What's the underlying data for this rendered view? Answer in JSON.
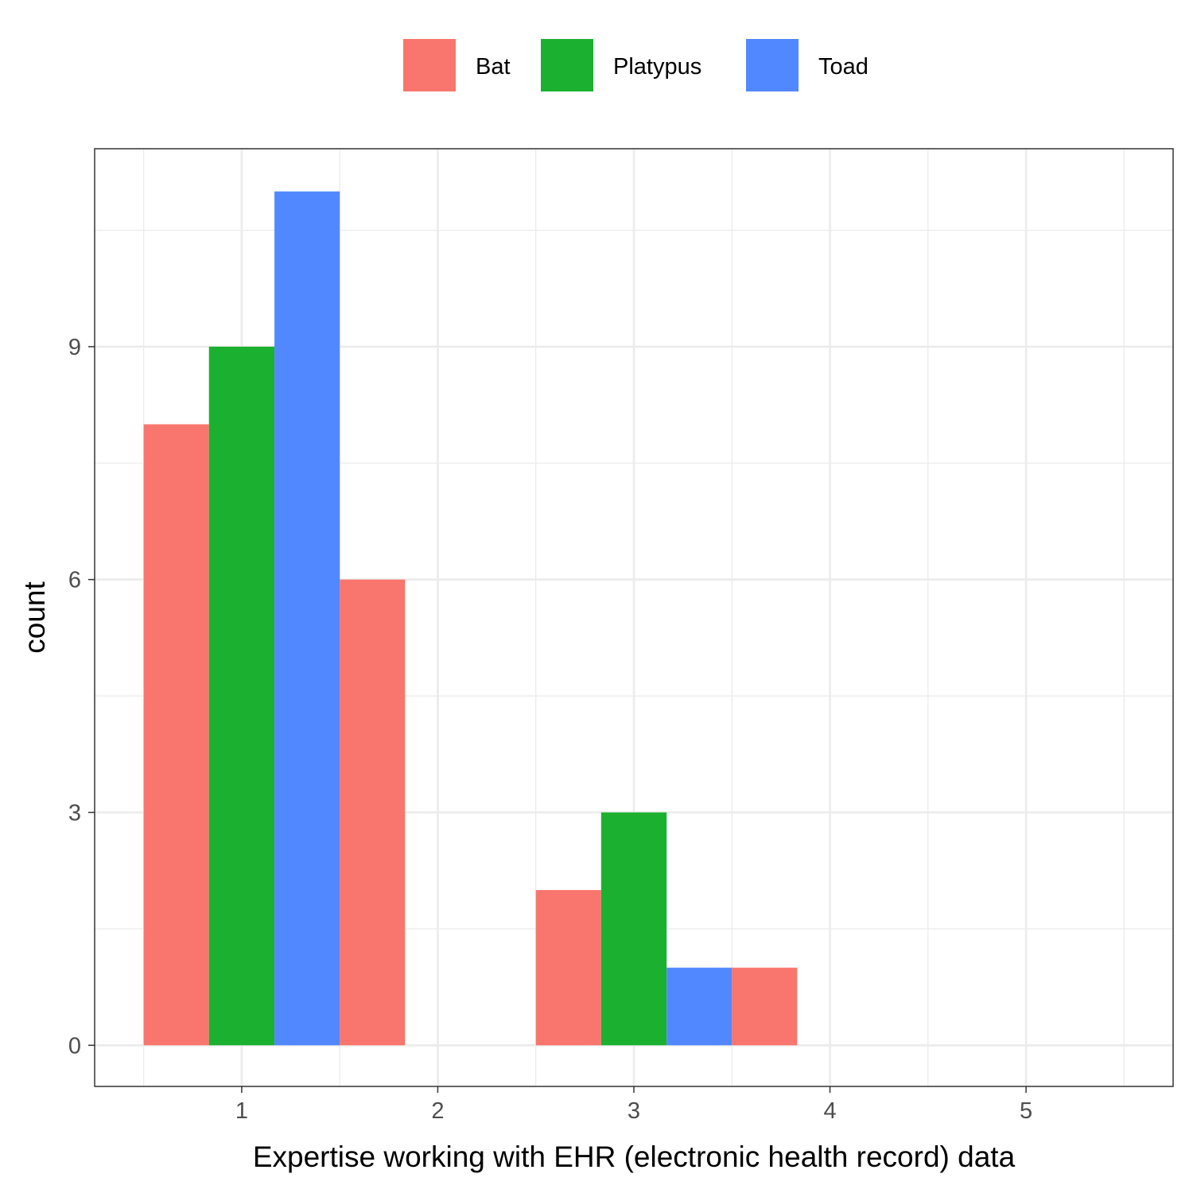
{
  "chart_data": {
    "type": "bar",
    "xlabel": "Expertise working with EHR (electronic health record) data",
    "ylabel": "count",
    "xlim": [
      0.25,
      5.75
    ],
    "ylim": [
      -0.53,
      11.55
    ],
    "x_ticks": [
      1,
      2,
      3,
      4,
      5
    ],
    "y_ticks": [
      0,
      3,
      6,
      9
    ],
    "grid": true,
    "legend_position": "top",
    "series": [
      {
        "name": "Bat",
        "color": "#F8766D",
        "bars": [
          {
            "x0": 0.5,
            "x1": 1.833,
            "y": 8
          },
          {
            "x0": 1.833,
            "x1": 1.834,
            "y": 0
          }
        ]
      },
      {
        "name": "Platypus",
        "color": "#00BA38",
        "bars": []
      },
      {
        "name": "Toad",
        "color": "#619CFF",
        "bars": []
      }
    ],
    "bars": [
      {
        "series": "Bat",
        "x0": 0.5,
        "x1": 0.833,
        "y": 8
      },
      {
        "series": "Platypus",
        "x0": 0.833,
        "x1": 1.167,
        "y": 9
      },
      {
        "series": "Toad",
        "x0": 1.167,
        "x1": 1.5,
        "y": 11
      },
      {
        "series": "Bat",
        "x0": 1.5,
        "x1": 1.833,
        "y": 6
      },
      {
        "series": "Bat",
        "x0": 2.5,
        "x1": 2.833,
        "y": 2
      },
      {
        "series": "Platypus",
        "x0": 2.833,
        "x1": 3.167,
        "y": 3
      },
      {
        "series": "Toad",
        "x0": 3.167,
        "x1": 3.5,
        "y": 1
      },
      {
        "series": "Bat",
        "x0": 3.5,
        "x1": 3.833,
        "y": 1
      }
    ],
    "legend": [
      {
        "name": "Bat",
        "color": "#F8766D"
      },
      {
        "name": "Platypus",
        "color": "#1BB02F"
      },
      {
        "name": "Toad",
        "color": "#5288FF"
      }
    ]
  }
}
